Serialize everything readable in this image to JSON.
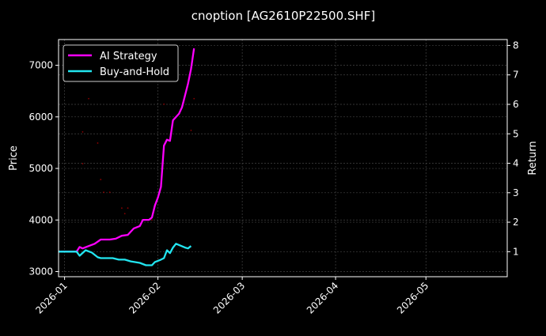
{
  "chart_data": {
    "type": "line",
    "title": "cnoption [AG2610P22500.SHF]",
    "ylabel": "Price",
    "ylabel_right": "Return",
    "xlim": [
      "2025-12-30",
      "2026-05-28"
    ],
    "ylim": [
      2900,
      7500
    ],
    "ylim_right": [
      0.15,
      8.2
    ],
    "x_ticks": [
      "2026-01-01",
      "2026-02-01",
      "2026-03-01",
      "2026-04-01",
      "2026-05-01"
    ],
    "x_tick_labels": [
      "2026-01",
      "2026-02",
      "2026-03",
      "2026-04",
      "2026-05"
    ],
    "y_ticks": [
      3000,
      4000,
      5000,
      6000,
      7000
    ],
    "y_tick_labels": [
      "3000",
      "4000",
      "5000",
      "6000",
      "7000"
    ],
    "y_ticks_right": [
      1,
      2,
      3,
      4,
      5,
      6,
      7,
      8
    ],
    "y_tick_labels_right": [
      "1",
      "2",
      "3",
      "4",
      "5",
      "6",
      "7",
      "8"
    ],
    "grid": true,
    "legend_position": "top-left",
    "background": "#000000",
    "series": [
      {
        "name": "AI Strategy",
        "axis": "right",
        "color": "#ff00ff",
        "x": [
          "2025-12-30",
          "2026-01-05",
          "2026-01-06",
          "2026-01-07",
          "2026-01-09",
          "2026-01-11",
          "2026-01-13",
          "2026-01-16",
          "2026-01-18",
          "2026-01-20",
          "2026-01-22",
          "2026-01-23",
          "2026-01-24",
          "2026-01-26",
          "2026-01-27",
          "2026-01-29",
          "2026-01-30",
          "2026-01-31",
          "2026-02-01",
          "2026-02-02",
          "2026-02-03",
          "2026-02-04",
          "2026-02-05",
          "2026-02-06",
          "2026-02-08",
          "2026-02-09",
          "2026-02-10",
          "2026-02-11",
          "2026-02-12",
          "2026-02-13"
        ],
        "values": [
          1.0,
          1.0,
          1.16,
          1.11,
          1.19,
          1.27,
          1.41,
          1.41,
          1.44,
          1.54,
          1.57,
          1.68,
          1.79,
          1.87,
          2.08,
          2.08,
          2.16,
          2.57,
          2.84,
          3.2,
          4.6,
          4.8,
          4.76,
          5.46,
          5.68,
          5.9,
          6.3,
          6.7,
          7.2,
          7.9
        ]
      },
      {
        "name": "Buy-and-Hold",
        "axis": "right",
        "color": "#22e5f0",
        "x": [
          "2025-12-30",
          "2026-01-05",
          "2026-01-06",
          "2026-01-08",
          "2026-01-10",
          "2026-01-12",
          "2026-01-13",
          "2026-01-17",
          "2026-01-19",
          "2026-01-21",
          "2026-01-23",
          "2026-01-26",
          "2026-01-28",
          "2026-01-30",
          "2026-01-31",
          "2026-02-02",
          "2026-02-03",
          "2026-02-04",
          "2026-02-05",
          "2026-02-06",
          "2026-02-07",
          "2026-02-10",
          "2026-02-11",
          "2026-02-12"
        ],
        "values": [
          1.0,
          1.0,
          0.86,
          1.05,
          0.97,
          0.81,
          0.78,
          0.78,
          0.73,
          0.73,
          0.67,
          0.62,
          0.54,
          0.54,
          0.65,
          0.73,
          0.78,
          1.05,
          0.95,
          1.14,
          1.27,
          1.14,
          1.11,
          1.19
        ]
      }
    ],
    "price_points": {
      "axis": "left",
      "color": "#8b0000",
      "x": [
        "2026-01-09",
        "2026-01-07",
        "2026-01-12",
        "2026-01-07",
        "2026-01-13",
        "2026-01-14",
        "2026-01-16",
        "2026-01-20",
        "2026-01-21",
        "2026-01-22",
        "2026-01-30",
        "2026-02-03",
        "2026-02-12",
        "2026-02-13"
      ],
      "values": [
        6354,
        5708,
        5492,
        5092,
        4785,
        4538,
        4538,
        4231,
        4123,
        4231,
        4000,
        6246,
        5738,
        6354
      ]
    }
  }
}
